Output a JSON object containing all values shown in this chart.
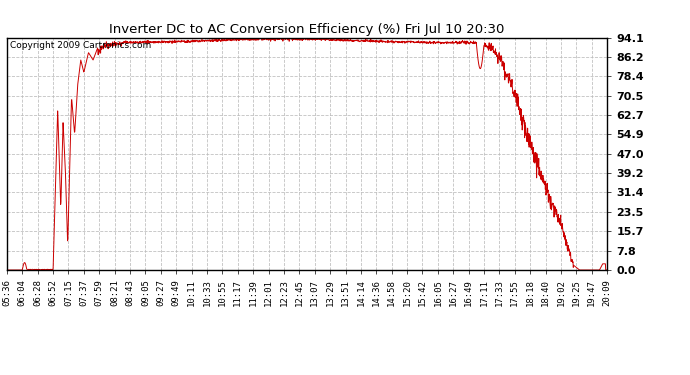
{
  "title": "Inverter DC to AC Conversion Efficiency (%) Fri Jul 10 20:30",
  "copyright": "Copyright 2009 Cartronics.com",
  "line_color": "#cc0000",
  "bg_color": "#ffffff",
  "grid_color": "#bbbbbb",
  "ylim": [
    0.0,
    94.1
  ],
  "yticks": [
    0.0,
    7.8,
    15.7,
    23.5,
    31.4,
    39.2,
    47.0,
    54.9,
    62.7,
    70.5,
    78.4,
    86.2,
    94.1
  ],
  "xtick_labels": [
    "05:36",
    "06:04",
    "06:28",
    "06:52",
    "07:15",
    "07:37",
    "07:59",
    "08:21",
    "08:43",
    "09:05",
    "09:27",
    "09:49",
    "10:11",
    "10:33",
    "10:55",
    "11:17",
    "11:39",
    "12:01",
    "12:23",
    "12:45",
    "13:07",
    "13:29",
    "13:51",
    "14:14",
    "14:36",
    "14:58",
    "15:20",
    "15:42",
    "16:05",
    "16:27",
    "16:49",
    "17:11",
    "17:33",
    "17:55",
    "18:18",
    "18:40",
    "19:02",
    "19:25",
    "19:47",
    "20:09"
  ],
  "n_points": 2000
}
